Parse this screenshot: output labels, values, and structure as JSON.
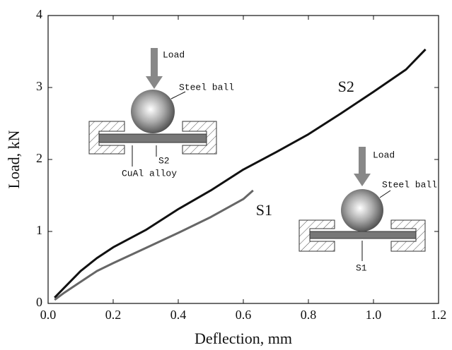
{
  "chart_data": {
    "type": "line",
    "xlabel": "Deflection, mm",
    "ylabel": "Load, kN",
    "xlim": [
      0,
      1.2
    ],
    "ylim": [
      0,
      4
    ],
    "xticks": [
      {
        "value": 0,
        "label": "0.0"
      },
      0.2,
      0.4,
      0.6,
      0.8,
      {
        "value": 1,
        "label": "1.0"
      },
      1.2
    ],
    "yticks": [
      0,
      1,
      2,
      3,
      4
    ],
    "series": [
      {
        "name": "S2",
        "color": "#111111",
        "x": [
          0.02,
          0.05,
          0.1,
          0.15,
          0.2,
          0.3,
          0.4,
          0.5,
          0.6,
          0.7,
          0.8,
          0.9,
          1.0,
          1.1,
          1.16
        ],
        "values": [
          0.08,
          0.22,
          0.45,
          0.63,
          0.78,
          1.02,
          1.31,
          1.57,
          1.86,
          2.1,
          2.35,
          2.64,
          2.94,
          3.25,
          3.53
        ]
      },
      {
        "name": "S1",
        "color": "#666666",
        "x": [
          0.02,
          0.05,
          0.1,
          0.15,
          0.2,
          0.3,
          0.4,
          0.5,
          0.6,
          0.63
        ],
        "values": [
          0.05,
          0.15,
          0.3,
          0.45,
          0.56,
          0.77,
          0.98,
          1.2,
          1.45,
          1.57
        ]
      }
    ],
    "insets": [
      {
        "load": "Load",
        "ball": "Steel ball",
        "specimen": "S2",
        "material": "CuAl alloy"
      },
      {
        "load": "Load",
        "ball": "Steel ball",
        "specimen": "S1"
      }
    ]
  }
}
